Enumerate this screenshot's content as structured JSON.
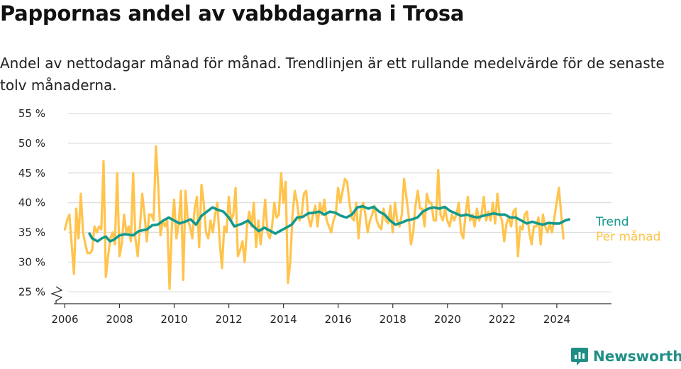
{
  "title": "Pappornas andel av vabbdagarna i Trosa",
  "subtitle": "Andel av nettodagar månad för månad. Trendlinjen är ett rullande medelvärde för de senaste tolv månaderna.",
  "brand": {
    "name": "Newsworthy",
    "icon": "newsworthy-logo-icon"
  },
  "colors": {
    "monthly": "#FFC44D",
    "trend": "#13998C",
    "grid": "#dddddd",
    "axis": "#333333"
  },
  "chart_data": {
    "type": "line",
    "title": "Pappornas andel av vabbdagarna i Trosa",
    "xlabel": "",
    "ylabel": "",
    "ylim": [
      23,
      55
    ],
    "y_ticks": [
      25,
      30,
      35,
      40,
      45,
      50,
      55
    ],
    "y_tick_labels": [
      "25 %",
      "30 %",
      "35 %",
      "40 %",
      "45 %",
      "50 %",
      "55 %"
    ],
    "x_ticks": [
      2006,
      2008,
      2010,
      2012,
      2014,
      2016,
      2018,
      2020,
      2022,
      2024
    ],
    "x_tick_labels": [
      "2006",
      "2008",
      "2010",
      "2012",
      "2014",
      "2016",
      "2018",
      "2020",
      "2022",
      "2024"
    ],
    "xlim": [
      2005.6,
      2026.0
    ],
    "grid": "horizontal",
    "axis_break": "y",
    "legend": "right-end labels",
    "series": [
      {
        "name": "Per månad",
        "x_start": 2006.0,
        "x_step": 0.0833,
        "values": [
          35.5,
          37,
          38,
          33,
          28,
          39,
          34,
          41.5,
          35,
          33,
          31.5,
          31.5,
          32,
          36,
          35,
          36,
          35.5,
          47,
          27.5,
          31,
          34,
          35,
          33,
          45,
          31,
          33,
          38,
          35,
          36,
          33.5,
          45,
          34,
          31,
          36,
          41.5,
          38,
          33.5,
          38,
          38,
          37,
          49.5,
          43,
          34.5,
          37,
          36,
          37,
          25.5,
          36,
          40.5,
          34,
          36.5,
          42,
          27,
          42,
          37,
          36,
          34,
          39,
          41,
          32.5,
          43,
          40,
          35,
          34,
          37,
          35,
          38,
          40,
          33.5,
          29,
          36,
          35,
          41,
          37,
          38,
          42.5,
          31,
          32,
          33.5,
          30,
          36,
          38.5,
          36,
          40,
          32.5,
          37,
          33,
          36,
          40.5,
          35,
          34,
          36,
          40,
          37.5,
          38,
          45,
          40,
          43.5,
          26.5,
          30,
          38,
          42,
          40,
          37,
          38,
          41.5,
          42,
          37.5,
          36,
          38,
          39.5,
          36,
          40,
          38,
          40.5,
          37,
          36,
          35,
          37,
          38,
          42.5,
          40,
          42,
          44,
          43.5,
          40,
          37.5,
          37,
          40,
          34,
          38.5,
          40,
          38,
          35,
          37,
          38,
          39.5,
          37,
          36,
          35.5,
          39,
          37,
          36.5,
          39.5,
          35,
          40,
          37,
          36,
          38,
          44,
          41,
          38,
          33,
          35,
          39.5,
          42,
          39,
          39,
          36,
          41.5,
          40,
          40,
          37,
          37,
          45.5,
          38,
          37,
          39,
          37,
          36,
          38,
          37,
          38,
          40,
          35,
          34,
          38,
          41,
          37,
          38,
          36,
          39,
          37,
          38,
          41,
          37,
          38.5,
          37,
          40,
          36.5,
          41.5,
          38,
          37,
          33.5,
          36.5,
          37.5,
          36,
          38.5,
          39,
          31,
          36,
          35.5,
          38,
          38.5,
          35,
          33,
          36,
          36,
          37.5,
          33,
          38,
          36,
          35,
          36.5,
          35,
          37.5,
          40,
          42.5,
          38,
          34
        ]
      },
      {
        "name": "Trend",
        "x": [
          2006.9,
          2007.0,
          2007.2,
          2007.35,
          2007.5,
          2007.65,
          2007.8,
          2008.0,
          2008.2,
          2008.5,
          2008.7,
          2009.0,
          2009.2,
          2009.4,
          2009.6,
          2009.8,
          2010.0,
          2010.2,
          2010.4,
          2010.6,
          2010.8,
          2011.0,
          2011.2,
          2011.4,
          2011.6,
          2011.8,
          2012.0,
          2012.2,
          2012.5,
          2012.7,
          2012.9,
          2013.1,
          2013.3,
          2013.5,
          2013.7,
          2013.9,
          2014.1,
          2014.3,
          2014.5,
          2014.7,
          2014.9,
          2015.1,
          2015.3,
          2015.5,
          2015.7,
          2015.9,
          2016.1,
          2016.3,
          2016.5,
          2016.7,
          2016.9,
          2017.1,
          2017.3,
          2017.5,
          2017.7,
          2017.9,
          2018.1,
          2018.3,
          2018.5,
          2018.7,
          2018.9,
          2019.1,
          2019.3,
          2019.5,
          2019.7,
          2019.9,
          2020.1,
          2020.3,
          2020.5,
          2020.7,
          2020.9,
          2021.1,
          2021.3,
          2021.5,
          2021.7,
          2021.9,
          2022.1,
          2022.3,
          2022.5,
          2022.7,
          2022.9,
          2023.1,
          2023.3,
          2023.5,
          2023.7,
          2023.9,
          2024.1,
          2024.3,
          2024.45
        ],
        "values": [
          34.8,
          34,
          33.5,
          34,
          34.3,
          33.5,
          33.8,
          34.5,
          34.7,
          34.5,
          35.2,
          35.5,
          36.2,
          36.3,
          37,
          37.5,
          37,
          36.5,
          36.8,
          37.2,
          36.3,
          37.8,
          38.5,
          39.2,
          38.8,
          38.5,
          37.5,
          36,
          36.5,
          37,
          36,
          35.2,
          35.8,
          35.3,
          34.8,
          35.3,
          35.8,
          36.3,
          37.5,
          37.6,
          38.2,
          38.3,
          38.5,
          38,
          38.5,
          38.3,
          37.8,
          37.5,
          38,
          39.2,
          39.4,
          39,
          39.3,
          38.5,
          38,
          37,
          36.3,
          36.6,
          37,
          37.2,
          37.5,
          38.5,
          39,
          39.2,
          39,
          39.3,
          38.6,
          38.2,
          37.8,
          38,
          37.7,
          37.5,
          37.8,
          38,
          38.2,
          38,
          38,
          37.5,
          37.5,
          37,
          36.5,
          36.8,
          36.5,
          36.3,
          36.6,
          36.5,
          36.5,
          37,
          37.2
        ]
      }
    ]
  }
}
